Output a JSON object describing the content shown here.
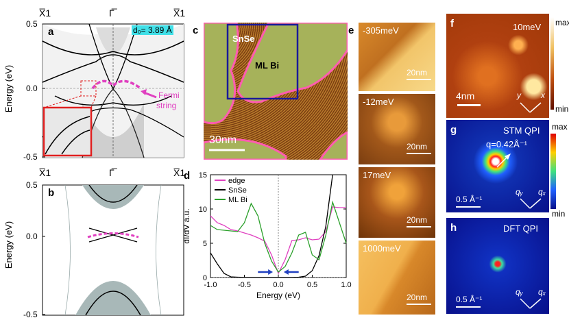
{
  "panels": {
    "a": {
      "letter": "a",
      "top_labels": [
        "X̅1",
        "Γ̅",
        "X̅1"
      ],
      "ylabel": "Energy (eV)",
      "yticks": [
        "0.5",
        "0.0",
        "-0.5"
      ],
      "d0_label": "d₀= 3.89 Å",
      "fermi_label_1": "Fermi",
      "fermi_label_2": "string"
    },
    "b": {
      "letter": "b",
      "top_labels": [
        "X̅1",
        "Γ̅",
        "X̅1"
      ],
      "ylabel": "Energy (eV)",
      "yticks": [
        "0.5",
        "0.0",
        "-0.5"
      ]
    },
    "c": {
      "letter": "c",
      "label_snse": "SnSe",
      "label_mlbi": "ML Bi",
      "scalebar": "30nm"
    },
    "d": {
      "letter": "d"
    },
    "e": {
      "letter": "e",
      "tiles": [
        {
          "energy": "-305meV",
          "scalebar": "20nm"
        },
        {
          "energy": "-12meV",
          "scalebar": "20nm"
        },
        {
          "energy": "17meV",
          "scalebar": "20nm"
        },
        {
          "energy": "1000meV",
          "scalebar": "20nm"
        }
      ]
    },
    "f": {
      "letter": "f",
      "energy": "10meV",
      "scalebar": "4nm",
      "axis_y": "y",
      "axis_x": "x",
      "colorbar_max": "max",
      "colorbar_min": "min"
    },
    "g": {
      "letter": "g",
      "title": "STM QPI",
      "q_label": "q=0.42Å⁻¹",
      "scalebar": "0.5 Å⁻¹",
      "axis_qy": "qᵧ",
      "axis_qx": "qₓ",
      "colorbar_max": "max",
      "colorbar_min": "min"
    },
    "h": {
      "letter": "h",
      "title": "DFT QPI",
      "scalebar": "0.5 Å⁻¹",
      "axis_qy": "qᵧ",
      "axis_qx": "qₓ"
    }
  },
  "chart_data": {
    "type": "line",
    "xlabel": "Energy (eV)",
    "ylabel": "dI/dV a.u.",
    "xlim": [
      -1.0,
      1.0
    ],
    "ylim": [
      0,
      15
    ],
    "xticks": [
      "-1.0",
      "-0.5",
      "0.0",
      "0.5",
      "1.0"
    ],
    "yticks": [
      "0",
      "5",
      "10",
      "15"
    ],
    "legend_position": "top-left",
    "series": [
      {
        "name": "edge",
        "color": "#e040c0",
        "x": [
          -1.0,
          -0.9,
          -0.8,
          -0.7,
          -0.6,
          -0.5,
          -0.4,
          -0.3,
          -0.2,
          -0.1,
          0.0,
          0.1,
          0.2,
          0.3,
          0.4,
          0.5,
          0.6,
          0.7,
          0.8,
          0.9,
          1.0
        ],
        "y": [
          9.0,
          8.0,
          7.6,
          7.0,
          6.8,
          6.5,
          6.2,
          5.8,
          5.3,
          3.3,
          0.6,
          2.6,
          5.4,
          5.5,
          5.8,
          5.5,
          5.6,
          6.7,
          10.3,
          10.2,
          10.2
        ]
      },
      {
        "name": "SnSe",
        "color": "#000000",
        "x": [
          -1.0,
          -0.9,
          -0.8,
          -0.7,
          -0.6,
          -0.5,
          -0.4,
          -0.3,
          -0.2,
          -0.1,
          0.0,
          0.1,
          0.2,
          0.3,
          0.4,
          0.5,
          0.6,
          0.7,
          0.8
        ],
        "y": [
          3.6,
          2.0,
          0.6,
          0.1,
          0.05,
          0.02,
          0.02,
          0.02,
          0.02,
          0.02,
          0.02,
          0.02,
          0.02,
          0.05,
          0.2,
          1.0,
          3.2,
          7.5,
          15.0
        ]
      },
      {
        "name": "ML Bi",
        "color": "#2ca02c",
        "x": [
          -1.0,
          -0.9,
          -0.8,
          -0.7,
          -0.6,
          -0.5,
          -0.4,
          -0.3,
          -0.2,
          -0.1,
          0.0,
          0.1,
          0.2,
          0.3,
          0.4,
          0.5,
          0.6,
          0.7,
          0.8,
          0.9,
          1.0
        ],
        "y": [
          7.6,
          7.0,
          6.9,
          6.8,
          6.7,
          8.0,
          10.8,
          9.0,
          5.0,
          2.4,
          0.8,
          1.6,
          3.6,
          6.2,
          6.6,
          3.3,
          2.6,
          6.2,
          11.0,
          8.0,
          5.0
        ]
      }
    ]
  },
  "colors": {
    "magenta": "#e040c0",
    "blue_box": "#1a1a9a",
    "red_box": "#e02020",
    "cyan_label_bg": "#40e0e8"
  }
}
